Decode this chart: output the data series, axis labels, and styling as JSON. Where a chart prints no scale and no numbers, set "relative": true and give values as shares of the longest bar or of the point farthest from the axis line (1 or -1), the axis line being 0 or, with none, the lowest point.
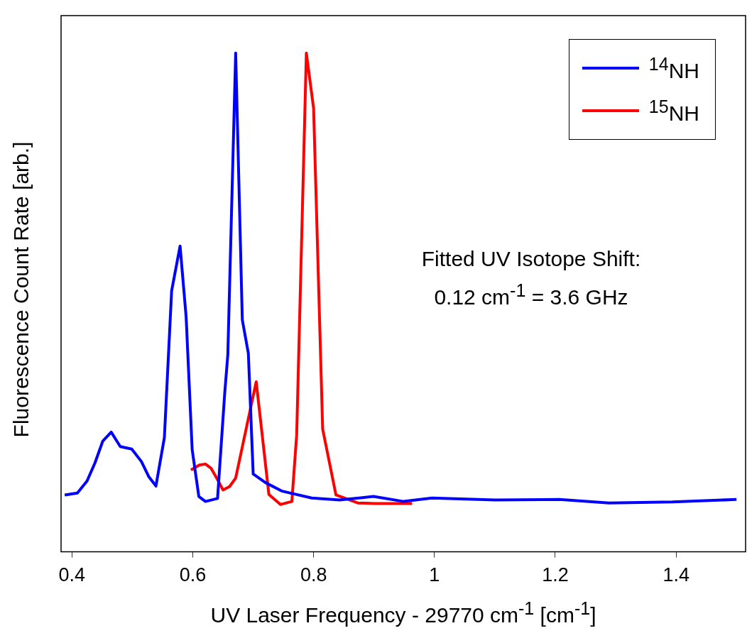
{
  "chart_data": {
    "type": "line",
    "relative": true,
    "xlabel": "UV Laser Frequency - 29770 cm$^{-1}$ [cm$^{-1}$]",
    "ylabel": "Fluorescence Count Rate [arb.]",
    "xlim": [
      0.382,
      1.515
    ],
    "xticks": [
      0.4,
      0.6,
      0.8,
      1,
      1.2,
      1.4
    ],
    "grid": false,
    "legend": "top right",
    "marker": "none",
    "line_style": "solid",
    "annotations": [
      "Fitted UV Isotope Shift:",
      "0.12 cm$^{-1}$ = 3.6 GHz"
    ],
    "series": [
      {
        "name": "$^{14}$NH",
        "color": "#0000ff",
        "x": [
          0.388,
          0.409,
          0.425,
          0.438,
          0.451,
          0.465,
          0.48,
          0.499,
          0.515,
          0.527,
          0.539,
          0.553,
          0.565,
          0.579,
          0.589,
          0.599,
          0.61,
          0.621,
          0.641,
          0.653,
          0.658,
          0.671,
          0.682,
          0.692,
          0.7,
          0.72,
          0.747,
          0.797,
          0.843,
          0.899,
          0.949,
          0.996,
          1.101,
          1.207,
          1.289,
          1.394,
          1.5
        ],
        "values": [
          0.114,
          0.118,
          0.142,
          0.178,
          0.222,
          0.24,
          0.211,
          0.206,
          0.181,
          0.151,
          0.132,
          0.229,
          0.523,
          0.613,
          0.471,
          0.205,
          0.111,
          0.101,
          0.107,
          0.32,
          0.395,
          1,
          0.465,
          0.398,
          0.156,
          0.139,
          0.122,
          0.108,
          0.104,
          0.111,
          0.101,
          0.108,
          0.104,
          0.105,
          0.098,
          0.1,
          0.105
        ]
      },
      {
        "name": "$^{15}$NH",
        "color": "#ff0000",
        "x": [
          0.597,
          0.611,
          0.621,
          0.63,
          0.64,
          0.65,
          0.661,
          0.671,
          0.705,
          0.726,
          0.745,
          0.764,
          0.772,
          0.788,
          0.8,
          0.815,
          0.837,
          0.873,
          0.902,
          0.963
        ],
        "values": [
          0.164,
          0.174,
          0.176,
          0.168,
          0.147,
          0.124,
          0.131,
          0.148,
          0.341,
          0.115,
          0.095,
          0.101,
          0.235,
          1,
          0.889,
          0.246,
          0.114,
          0.098,
          0.097,
          0.097
        ]
      }
    ]
  }
}
